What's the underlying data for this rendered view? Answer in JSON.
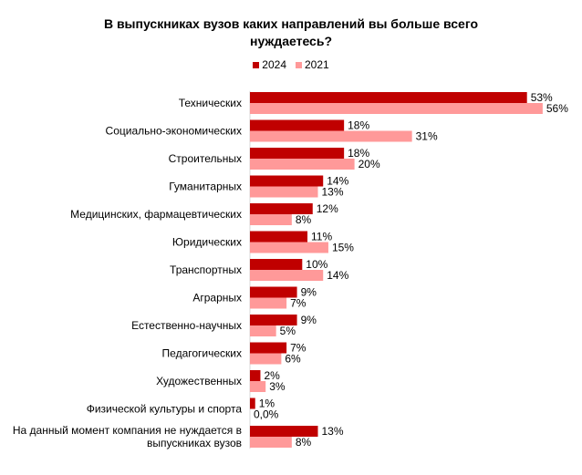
{
  "chart_data": {
    "type": "bar",
    "orientation": "horizontal",
    "title": "В выпускниках вузов каких направлений вы больше всего\nнуждаетесь?",
    "legend_placement": "top",
    "colors": {
      "2024": "#c00000",
      "2021": "#ff9999"
    },
    "series": [
      {
        "name": "2024",
        "values": [
          53,
          18,
          18,
          14,
          12,
          11,
          10,
          9,
          9,
          7,
          2,
          1,
          13
        ],
        "labels": [
          "53%",
          "18%",
          "18%",
          "14%",
          "12%",
          "11%",
          "10%",
          "9%",
          "9%",
          "7%",
          "2%",
          "1%",
          "13%"
        ]
      },
      {
        "name": "2021",
        "values": [
          56,
          31,
          20,
          13,
          8,
          15,
          14,
          7,
          5,
          6,
          3,
          0,
          8
        ],
        "labels": [
          "56%",
          "31%",
          "20%",
          "13%",
          "8%",
          "15%",
          "14%",
          "7%",
          "5%",
          "6%",
          "3%",
          "0,0%",
          "8%"
        ]
      }
    ],
    "categories": [
      [
        "Технических"
      ],
      [
        "Социально-экономических"
      ],
      [
        "Строительных"
      ],
      [
        "Гуманитарных"
      ],
      [
        "Медицинских, фармацевтических"
      ],
      [
        "Юридических"
      ],
      [
        "Транспортных"
      ],
      [
        "Аграрных"
      ],
      [
        "Естественно-научных"
      ],
      [
        "Педагогических"
      ],
      [
        "Художественных"
      ],
      [
        "Физической культуры и спорта"
      ],
      [
        "На данный момент компания не нуждается в",
        "выпускниках вузов"
      ]
    ],
    "xlim": [
      0,
      60
    ],
    "grid": false
  }
}
